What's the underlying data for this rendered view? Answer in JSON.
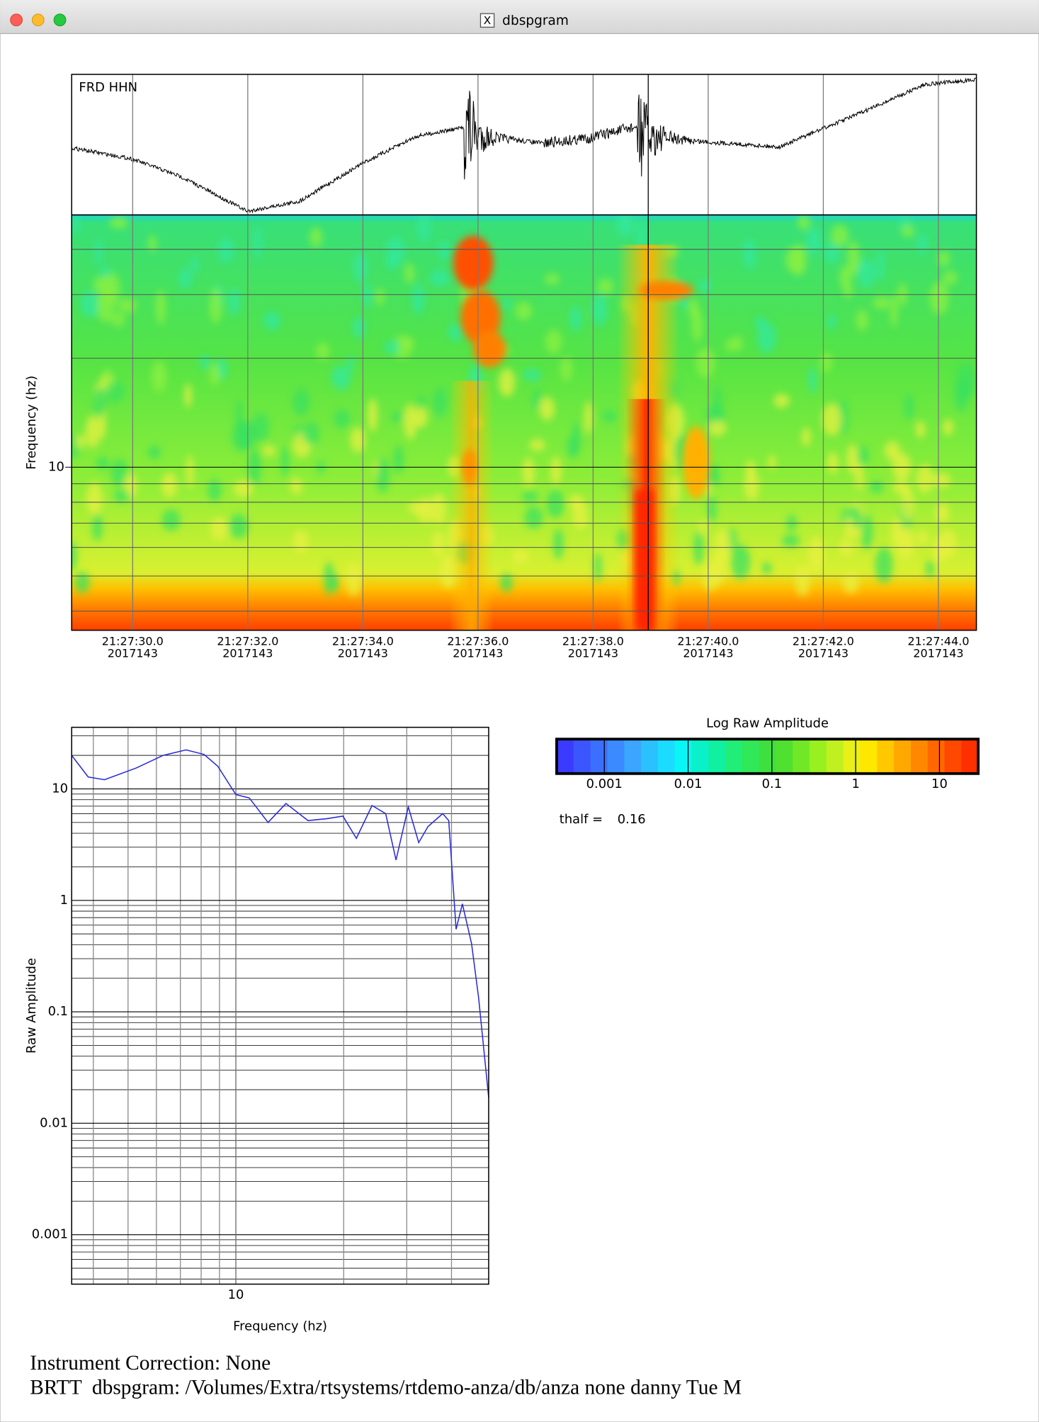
{
  "window": {
    "title": "dbspgram"
  },
  "seismogram": {
    "station": "FRD HHN"
  },
  "spectrogram": {
    "ylabel": "Frequency (hz)",
    "log_y": true,
    "ylim": [
      3.54,
      49.8
    ],
    "yticks": [
      10
    ],
    "minor_yticks": [
      4,
      5,
      6,
      7,
      8,
      9,
      20,
      30,
      40
    ],
    "xlim": [
      28.94,
      44.66
    ],
    "xticks": [
      {
        "value": 30,
        "label": "21:27:30.0"
      },
      {
        "value": 32,
        "label": "21:27:32.0"
      },
      {
        "value": 34,
        "label": "21:27:34.0"
      },
      {
        "value": 36,
        "label": "21:27:36.0"
      },
      {
        "value": 38,
        "label": "21:27:38.0"
      },
      {
        "value": 40,
        "label": "21:27:40.0"
      },
      {
        "value": 42,
        "label": "21:27:42.0"
      },
      {
        "value": 44,
        "label": "21:27:44.0"
      }
    ],
    "xtick_dates": [
      "2017143",
      "2017143",
      "2017143",
      "2017143",
      "2017143",
      "2017143",
      "2017143",
      "2017143"
    ]
  },
  "colorbar": {
    "title": "Log Raw Amplitude",
    "log": true,
    "xlim": [
      0.00027,
      29
    ],
    "xticks": [
      0.001,
      0.01,
      0.1,
      1,
      10
    ],
    "colors": [
      "#3b3bff",
      "#3b55ff",
      "#3b6fff",
      "#3b8aff",
      "#3ba5ff",
      "#2bc0ff",
      "#1bdcff",
      "#0af5f5",
      "#0af0c8",
      "#10f0a0",
      "#20ee78",
      "#30e858",
      "#3ee040",
      "#50e030",
      "#70e828",
      "#98f020",
      "#c0f020",
      "#e8f018",
      "#ffe800",
      "#ffc800",
      "#ffa800",
      "#ff8800",
      "#ff6800",
      "#ff4800",
      "#ff3000"
    ],
    "thalf_label": "thalf =",
    "thalf": 0.16
  },
  "spectrum_chart": {
    "type": "line",
    "xlabel": "Frequency (hz)",
    "ylabel": "Raw Amplitude",
    "log_x": true,
    "log_y": true,
    "color": "#2a2ad8",
    "xlim": [
      3.48,
      50.8
    ],
    "ylim": [
      0.00036,
      35.7
    ],
    "xticks": [
      10
    ],
    "minor_xticks": [
      4,
      5,
      6,
      7,
      8,
      9,
      20,
      30,
      40
    ],
    "yticks": [
      0.001,
      0.01,
      0.1,
      1,
      10
    ],
    "minor_yticks": [
      0.0004,
      0.0005,
      0.0006,
      0.0007,
      0.0008,
      0.0009,
      0.002,
      0.003,
      0.004,
      0.005,
      0.006,
      0.007,
      0.008,
      0.009,
      0.02,
      0.03,
      0.04,
      0.05,
      0.06,
      0.07,
      0.08,
      0.09,
      0.2,
      0.3,
      0.4,
      0.5,
      0.6,
      0.7,
      0.8,
      0.9,
      2,
      3,
      4,
      5,
      6,
      7,
      8,
      9,
      20,
      30
    ],
    "x": [
      3.48,
      3.87,
      4.3,
      5.27,
      6.27,
      7.26,
      8.15,
      8.9,
      10,
      10.9,
      12.3,
      13.8,
      15.9,
      17.9,
      19.9,
      21.7,
      24,
      26.2,
      28,
      30.3,
      32.4,
      34.4,
      37.8,
      39.3,
      41.2,
      42.9,
      45.5,
      47.6,
      50.8
    ],
    "values": [
      20,
      12.8,
      12.1,
      15.4,
      20,
      22.4,
      20.4,
      16,
      8.9,
      8.3,
      5,
      7.4,
      5.2,
      5.4,
      5.7,
      3.6,
      7.1,
      6,
      2.3,
      6.9,
      3.3,
      4.6,
      6,
      5.2,
      0.55,
      0.93,
      0.41,
      0.135,
      0.017
    ]
  },
  "footer": {
    "lines": [
      "Instrument Correction: None",
      "BRTT  dbspgram: /Volumes/Extra/rtsystems/rtdemo-anza/db/anza none danny Tue M"
    ]
  }
}
